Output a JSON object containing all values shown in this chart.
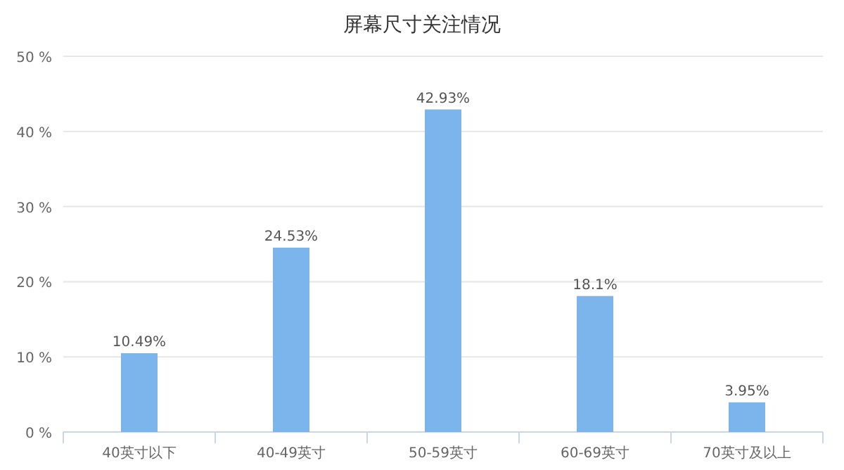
{
  "chart_data": {
    "type": "bar",
    "title": "屏幕尺寸关注情况",
    "categories": [
      "40英寸以下",
      "40-49英寸",
      "50-59英寸",
      "60-69英寸",
      "70英寸及以上"
    ],
    "values": [
      10.49,
      24.53,
      42.93,
      18.1,
      3.95
    ],
    "value_labels": [
      "10.49%",
      "24.53%",
      "42.93%",
      "18.1%",
      "3.95%"
    ],
    "color": "#7cb5ec",
    "ylim": [
      0,
      50
    ],
    "yticks": [
      {
        "value": 0,
        "label": "0 %"
      },
      {
        "value": 10,
        "label": "10 %"
      },
      {
        "value": 20,
        "label": "20 %"
      },
      {
        "value": 30,
        "label": "30 %"
      },
      {
        "value": 40,
        "label": "40 %"
      },
      {
        "value": 50,
        "label": "50 %"
      }
    ],
    "grid": "y"
  }
}
